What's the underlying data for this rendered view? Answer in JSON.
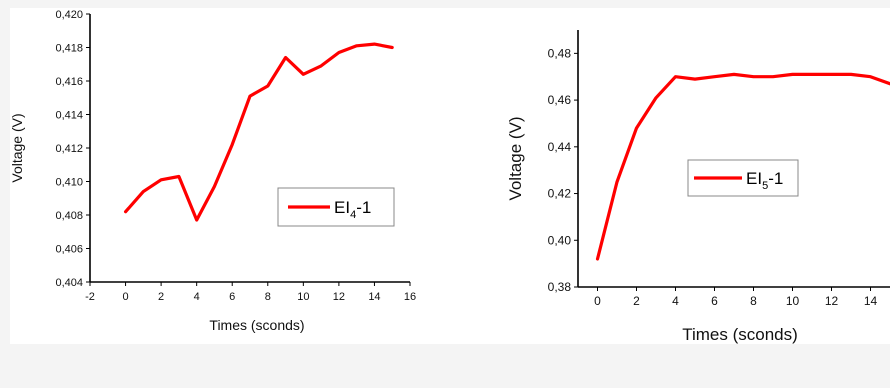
{
  "chart_data": [
    {
      "type": "line",
      "xlabel": "Times (sconds)",
      "ylabel": "Voltage (V)",
      "xlim": [
        -2,
        16
      ],
      "ylim": [
        0.404,
        0.42
      ],
      "xticks": [
        "-2",
        "0",
        "2",
        "4",
        "6",
        "8",
        "10",
        "12",
        "14",
        "16"
      ],
      "yticks": [
        "0,404",
        "0,406",
        "0,408",
        "0,410",
        "0,412",
        "0,414",
        "0,416",
        "0,418",
        "0,420"
      ],
      "color": "#ff0000",
      "legend": {
        "base": "EI",
        "sub": "4",
        "suffix": "-1",
        "placement": "right"
      },
      "series": [
        {
          "name": "EI4-1",
          "x": [
            0,
            1,
            2,
            3,
            4,
            5,
            6,
            7,
            8,
            9,
            10,
            11,
            12,
            13,
            14,
            15
          ],
          "values": [
            0.4082,
            0.4094,
            0.4101,
            0.4103,
            0.4077,
            0.4097,
            0.4122,
            0.4151,
            0.4157,
            0.4174,
            0.4164,
            0.4169,
            0.4177,
            0.4181,
            0.4182,
            0.418
          ]
        }
      ]
    },
    {
      "type": "line",
      "xlabel": "Times (sconds)",
      "ylabel": "Voltage (V)",
      "xlim": [
        -1,
        15
      ],
      "ylim": [
        0.38,
        0.49
      ],
      "xticks": [
        "0",
        "2",
        "4",
        "6",
        "8",
        "10",
        "12",
        "14"
      ],
      "yticks": [
        "0,38",
        "0,40",
        "0,42",
        "0,44",
        "0,46",
        "0,48"
      ],
      "color": "#ff0000",
      "legend": {
        "base": "EI",
        "sub": "5",
        "suffix": "-1",
        "placement": "center"
      },
      "series": [
        {
          "name": "EI5-1",
          "x": [
            0,
            1,
            2,
            3,
            4,
            5,
            6,
            7,
            8,
            9,
            10,
            11,
            12,
            13,
            14,
            15
          ],
          "values": [
            0.392,
            0.425,
            0.448,
            0.461,
            0.47,
            0.469,
            0.47,
            0.471,
            0.47,
            0.47,
            0.471,
            0.471,
            0.471,
            0.471,
            0.47,
            0.467
          ]
        }
      ]
    }
  ]
}
